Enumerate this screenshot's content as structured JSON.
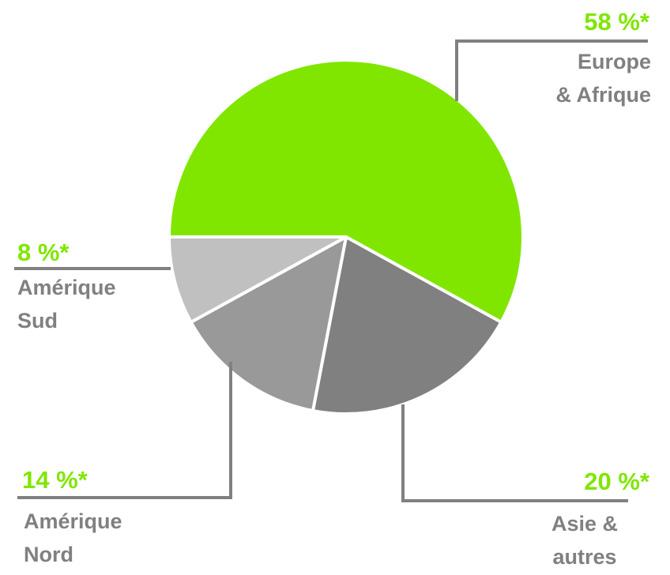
{
  "chart_data": {
    "type": "pie",
    "categories": [
      "Europe\n& Afrique",
      "Asie &\nautres",
      "Amérique\nNord",
      "Amérique\nSud"
    ],
    "values": [
      58,
      20,
      14,
      8
    ],
    "value_labels": [
      "58 %*",
      "20 %*",
      "14 %*",
      "8 %*"
    ],
    "colors": [
      "#80e600",
      "#808080",
      "#999999",
      "#c0c0c0"
    ],
    "label_color": "#808080",
    "value_label_color": "#80e600"
  }
}
